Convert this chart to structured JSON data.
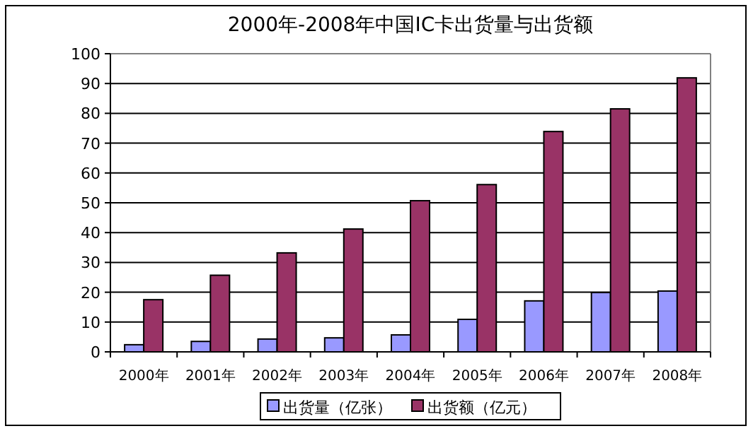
{
  "chart_data": {
    "type": "bar",
    "title": "2000年-2008年中国IC卡出货量与出货额",
    "categories": [
      "2000年",
      "2001年",
      "2002年",
      "2003年",
      "2004年",
      "2005年",
      "2006年",
      "2007年",
      "2008年"
    ],
    "series": [
      {
        "name": "出货量（亿张）",
        "color": "#9999ff",
        "values": [
          2.4,
          3.5,
          4.3,
          4.7,
          5.7,
          10.9,
          17.1,
          19.9,
          20.4
        ]
      },
      {
        "name": "出货额（亿元）",
        "color": "#993366",
        "values": [
          17.5,
          25.7,
          33.2,
          41.2,
          50.7,
          56.1,
          73.9,
          81.5,
          91.9
        ]
      }
    ],
    "ylim": [
      0,
      100
    ],
    "yticks": [
      0,
      10,
      20,
      30,
      40,
      50,
      60,
      70,
      80,
      90,
      100
    ],
    "grid": "y",
    "legend": "bottom"
  }
}
